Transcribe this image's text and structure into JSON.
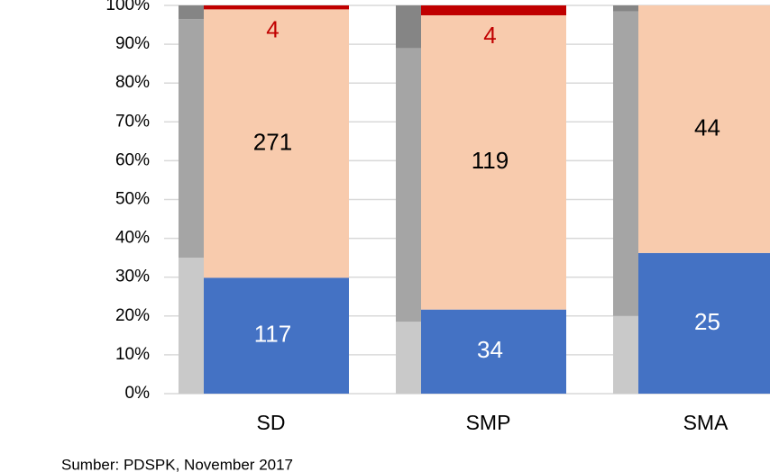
{
  "chart_data": {
    "type": "stacked_bar_100",
    "categories": [
      "SD",
      "SMP",
      "SMA"
    ],
    "series": [
      {
        "color": "#4472c4",
        "values": [
          117,
          34,
          25
        ]
      },
      {
        "color": "#f8cbad",
        "values": [
          271,
          119,
          44
        ]
      },
      {
        "color": "#c00000",
        "values": [
          4,
          4,
          null
        ]
      }
    ],
    "gray_series": [
      {
        "color": "#c9c9c9",
        "values": [
          35,
          18.5,
          20
        ]
      },
      {
        "color": "#a5a5a5",
        "values": [
          61.5,
          70.5,
          78.5
        ]
      },
      {
        "color": "#858585",
        "values": [
          3.5,
          11,
          1.5
        ]
      }
    ],
    "ylim": [
      0,
      100
    ],
    "yticks": [
      {
        "value": 0,
        "label": "0%"
      },
      {
        "value": 10,
        "label": "10%"
      },
      {
        "value": 20,
        "label": "20%"
      },
      {
        "value": 30,
        "label": "30%"
      },
      {
        "value": 40,
        "label": "40%"
      },
      {
        "value": 50,
        "label": "50%"
      },
      {
        "value": 60,
        "label": "60%"
      },
      {
        "value": 70,
        "label": "70%"
      },
      {
        "value": 80,
        "label": "80%"
      },
      {
        "value": 90,
        "label": "90%"
      },
      {
        "value": 100,
        "label": "100%"
      }
    ],
    "grid": true,
    "source": "Sumber: PDSPK, November 2017"
  }
}
